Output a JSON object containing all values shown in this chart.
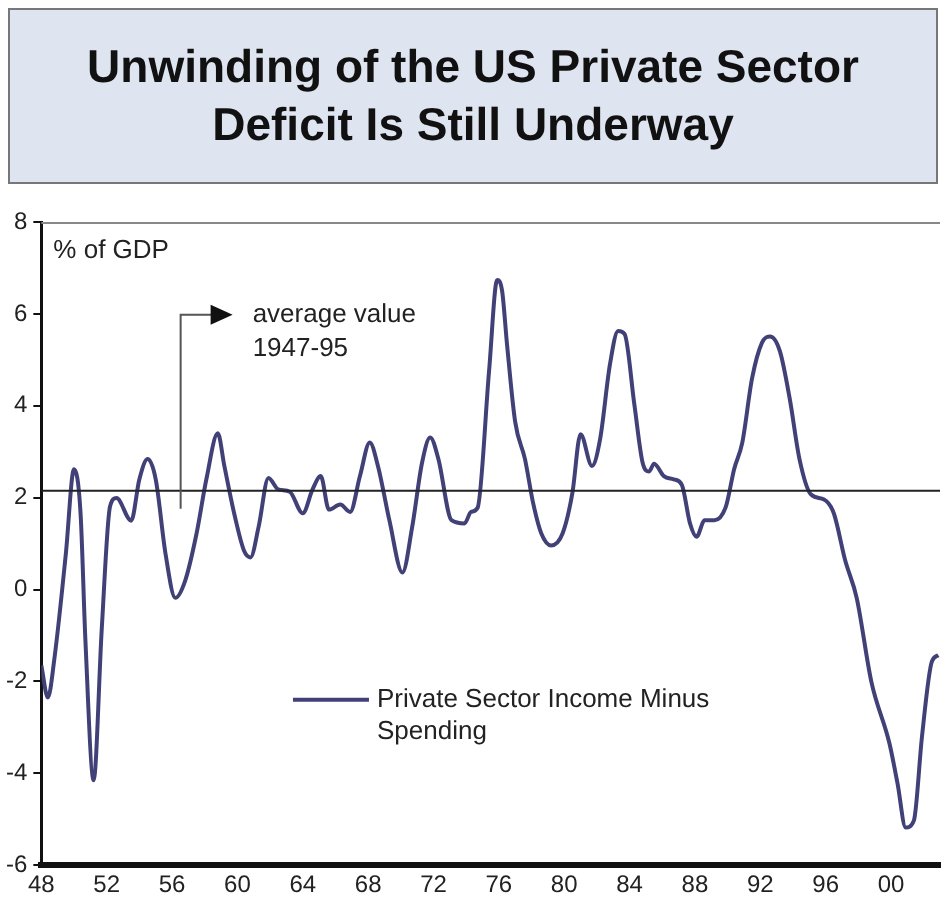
{
  "chart_data": {
    "type": "line",
    "title": "Unwinding of the US Private Sector Deficit Is Still Underway",
    "ylabel": "% of GDP",
    "series": [
      {
        "name": "Private Sector Income Minus Spending",
        "color": "#414178",
        "x": [
          1948.0,
          1948.4,
          1948.8,
          1949.5,
          1950.0,
          1950.4,
          1950.7,
          1951.2,
          1951.7,
          1952.2,
          1952.6,
          1953.5,
          1954.0,
          1954.5,
          1955.0,
          1955.6,
          1956.2,
          1956.8,
          1957.5,
          1958.1,
          1958.8,
          1959.2,
          1959.8,
          1960.4,
          1960.8,
          1961.3,
          1961.9,
          1962.5,
          1963.2,
          1964.0,
          1964.6,
          1965.1,
          1965.6,
          1966.3,
          1966.9,
          1967.5,
          1968.1,
          1968.6,
          1969.3,
          1970.1,
          1970.7,
          1971.3,
          1971.8,
          1972.3,
          1973.1,
          1973.9,
          1974.3,
          1974.7,
          1975.4,
          1975.9,
          1976.2,
          1976.5,
          1977.0,
          1977.6,
          1978.1,
          1978.6,
          1979.2,
          1979.9,
          1980.5,
          1981.0,
          1981.7,
          1982.2,
          1982.8,
          1983.3,
          1983.7,
          1984.3,
          1984.8,
          1985.2,
          1985.5,
          1986.1,
          1986.7,
          1987.2,
          1987.7,
          1988.1,
          1988.6,
          1989.2,
          1989.9,
          1990.4,
          1990.9,
          1991.5,
          1992.1,
          1992.6,
          1993.2,
          1993.8,
          1994.4,
          1995.1,
          1995.9,
          1996.5,
          1997.2,
          1997.9,
          1998.8,
          1999.9,
          2000.4,
          2000.9,
          2001.4,
          2001.9,
          2002.5,
          2002.9
        ],
        "values": [
          -1.65,
          -2.35,
          -1.5,
          0.78,
          2.62,
          1.66,
          -1.13,
          -4.15,
          -0.84,
          1.8,
          1.99,
          1.5,
          2.4,
          2.84,
          2.4,
          0.78,
          -0.18,
          0.19,
          1.22,
          2.4,
          3.4,
          2.69,
          1.66,
          0.85,
          0.7,
          1.37,
          2.43,
          2.18,
          2.13,
          1.66,
          2.18,
          2.47,
          1.74,
          1.85,
          1.69,
          2.47,
          3.2,
          2.69,
          1.51,
          0.37,
          1.37,
          2.76,
          3.31,
          2.84,
          1.51,
          1.44,
          1.69,
          1.78,
          4.75,
          6.74,
          6.5,
          5.34,
          3.65,
          2.84,
          1.88,
          1.22,
          0.96,
          1.22,
          2.1,
          3.38,
          2.69,
          3.28,
          4.9,
          5.63,
          5.56,
          4.01,
          2.76,
          2.57,
          2.74,
          2.47,
          2.4,
          2.28,
          1.44,
          1.15,
          1.51,
          1.51,
          1.81,
          2.62,
          3.2,
          4.6,
          5.37,
          5.51,
          5.19,
          4.16,
          2.84,
          2.07,
          1.96,
          1.66,
          0.63,
          -0.18,
          -2.01,
          -3.34,
          -4.22,
          -5.18,
          -5.03,
          -3.19,
          -1.57,
          -1.43
        ]
      }
    ],
    "xlim": [
      1948,
      2003
    ],
    "xticks": [
      {
        "value": 1948,
        "label": "48"
      },
      {
        "value": 1952,
        "label": "52"
      },
      {
        "value": 1956,
        "label": "56"
      },
      {
        "value": 1960,
        "label": "60"
      },
      {
        "value": 1964,
        "label": "64"
      },
      {
        "value": 1968,
        "label": "68"
      },
      {
        "value": 1972,
        "label": "72"
      },
      {
        "value": 1976,
        "label": "76"
      },
      {
        "value": 1980,
        "label": "80"
      },
      {
        "value": 1984,
        "label": "84"
      },
      {
        "value": 1988,
        "label": "88"
      },
      {
        "value": 1992,
        "label": "92"
      },
      {
        "value": 1996,
        "label": "96"
      },
      {
        "value": 2000,
        "label": "00"
      }
    ],
    "ylim": [
      -6,
      8
    ],
    "yticks": [
      -6,
      -4,
      -2,
      0,
      2,
      4,
      6,
      8
    ],
    "ref_lines": [
      {
        "axis": "y",
        "value": 2.15,
        "label": "average value 1947-95",
        "color": "#222222"
      }
    ],
    "grid": false,
    "legend": "bottom left",
    "marker": "none",
    "line_style": "solid"
  }
}
